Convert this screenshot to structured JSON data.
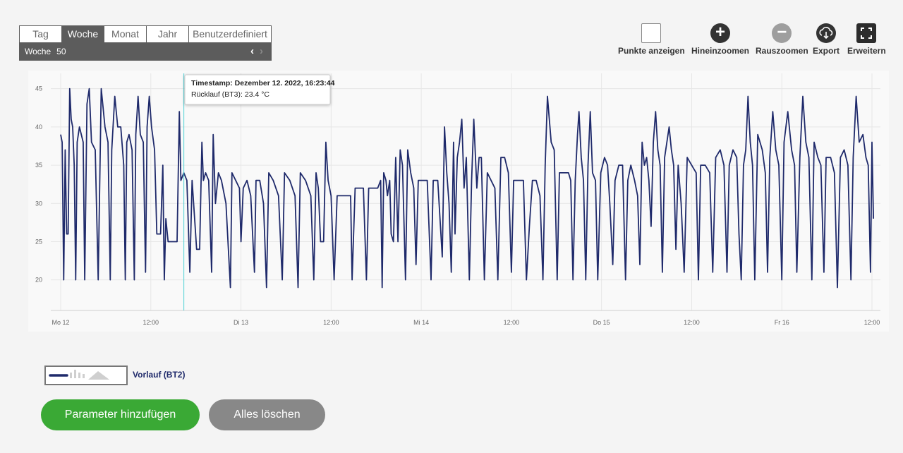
{
  "range_selector": {
    "tabs": [
      "Tag",
      "Woche",
      "Monat",
      "Jahr",
      "Benutzerdefiniert"
    ],
    "active_tab": "Woche",
    "period_label": "Woche",
    "period_value": "50"
  },
  "toolbar": {
    "show_points": "Punkte anzeigen",
    "zoom_in": "Hineinzoomen",
    "zoom_out": "Rauszoomen",
    "export": "Export",
    "expand": "Erweitern"
  },
  "tooltip": {
    "line1": "Timestamp: Dezember 12. 2022, 16:23:44",
    "line2": "Rücklauf (BT3): 23.4 °C"
  },
  "legend": {
    "label": "Vorlauf (BT2)"
  },
  "buttons": {
    "add": "Parameter hinzufügen",
    "clear": "Alles löschen"
  },
  "colors": {
    "series": "#1f2a6b",
    "cursor": "#4dd0d6",
    "add_button": "#3aa935",
    "clear_button": "#888888"
  },
  "chart_data": {
    "type": "line",
    "title": "",
    "xlabel": "",
    "ylabel": "",
    "y_ticks": [
      20,
      25,
      30,
      35,
      40,
      45
    ],
    "ylim": [
      16,
      47
    ],
    "x_ticks": [
      "Mo 12",
      "12:00",
      "Di 13",
      "12:00",
      "Mi 14",
      "12:00",
      "Do 15",
      "12:00",
      "Fr 16",
      "12:00"
    ],
    "x_range_hours": [
      0,
      108
    ],
    "cursor_hour": 16.4,
    "series": [
      {
        "name": "Vorlauf (BT2)",
        "points": [
          [
            0.0,
            39
          ],
          [
            0.2,
            38
          ],
          [
            0.4,
            20
          ],
          [
            0.6,
            37
          ],
          [
            0.8,
            26
          ],
          [
            1.0,
            26
          ],
          [
            1.2,
            45
          ],
          [
            1.4,
            41
          ],
          [
            1.6,
            40
          ],
          [
            1.8,
            35
          ],
          [
            2.0,
            20
          ],
          [
            2.2,
            38
          ],
          [
            2.5,
            40
          ],
          [
            3.0,
            38
          ],
          [
            3.2,
            20
          ],
          [
            3.5,
            43
          ],
          [
            3.8,
            45
          ],
          [
            4.1,
            38
          ],
          [
            4.6,
            37
          ],
          [
            5.0,
            20
          ],
          [
            5.4,
            45
          ],
          [
            5.9,
            40
          ],
          [
            6.3,
            38
          ],
          [
            6.6,
            20
          ],
          [
            6.8,
            37
          ],
          [
            7.2,
            44
          ],
          [
            7.6,
            40
          ],
          [
            8.0,
            40
          ],
          [
            8.4,
            35
          ],
          [
            8.6,
            20
          ],
          [
            8.8,
            38
          ],
          [
            9.1,
            39
          ],
          [
            9.5,
            37
          ],
          [
            9.8,
            20
          ],
          [
            10.0,
            39
          ],
          [
            10.3,
            44
          ],
          [
            10.6,
            39
          ],
          [
            11.0,
            38
          ],
          [
            11.3,
            21
          ],
          [
            11.5,
            40
          ],
          [
            11.8,
            44
          ],
          [
            12.1,
            40
          ],
          [
            12.5,
            37
          ],
          [
            12.8,
            26
          ],
          [
            13.3,
            26
          ],
          [
            13.6,
            35
          ],
          [
            13.8,
            20
          ],
          [
            14.0,
            28
          ],
          [
            14.3,
            25
          ],
          [
            15.0,
            25
          ],
          [
            15.5,
            25
          ],
          [
            15.8,
            42
          ],
          [
            16.0,
            33
          ],
          [
            16.4,
            34
          ],
          [
            16.8,
            33
          ],
          [
            17.2,
            21
          ],
          [
            17.5,
            33
          ],
          [
            17.9,
            27
          ],
          [
            18.1,
            24
          ],
          [
            18.5,
            24
          ],
          [
            18.8,
            38
          ],
          [
            19.0,
            33
          ],
          [
            19.3,
            34
          ],
          [
            19.7,
            33
          ],
          [
            20.1,
            21
          ],
          [
            20.3,
            39
          ],
          [
            20.6,
            30
          ],
          [
            21.0,
            34
          ],
          [
            21.4,
            33
          ],
          [
            22.0,
            30
          ],
          [
            22.6,
            19
          ],
          [
            22.8,
            34
          ],
          [
            23.3,
            33
          ],
          [
            23.8,
            32
          ],
          [
            24.0,
            25
          ],
          [
            24.3,
            32
          ],
          [
            24.8,
            33
          ],
          [
            25.3,
            31
          ],
          [
            25.8,
            21
          ],
          [
            26.0,
            33
          ],
          [
            26.5,
            33
          ],
          [
            27.0,
            30
          ],
          [
            27.4,
            19
          ],
          [
            27.7,
            34
          ],
          [
            28.3,
            33
          ],
          [
            29.0,
            31
          ],
          [
            29.5,
            20
          ],
          [
            29.8,
            34
          ],
          [
            30.5,
            33
          ],
          [
            31.2,
            31
          ],
          [
            31.6,
            19
          ],
          [
            31.9,
            34
          ],
          [
            32.6,
            33
          ],
          [
            33.3,
            31
          ],
          [
            33.7,
            20
          ],
          [
            34.0,
            34
          ],
          [
            34.3,
            32
          ],
          [
            34.6,
            25
          ],
          [
            35.0,
            25
          ],
          [
            35.3,
            38
          ],
          [
            35.6,
            33
          ],
          [
            36.0,
            31
          ],
          [
            36.4,
            20
          ],
          [
            36.8,
            31
          ],
          [
            37.5,
            31
          ],
          [
            38.0,
            31
          ],
          [
            38.6,
            31
          ],
          [
            38.8,
            20
          ],
          [
            39.2,
            32
          ],
          [
            39.8,
            32
          ],
          [
            40.3,
            32
          ],
          [
            40.7,
            20
          ],
          [
            41.0,
            32
          ],
          [
            41.6,
            32
          ],
          [
            42.2,
            32
          ],
          [
            42.6,
            33
          ],
          [
            42.8,
            19
          ],
          [
            43.0,
            34
          ],
          [
            43.3,
            33
          ],
          [
            43.5,
            31
          ],
          [
            43.8,
            33
          ],
          [
            44.0,
            26
          ],
          [
            44.3,
            25
          ],
          [
            44.6,
            36
          ],
          [
            44.9,
            25
          ],
          [
            45.2,
            37
          ],
          [
            45.5,
            35
          ],
          [
            45.9,
            20
          ],
          [
            46.2,
            37
          ],
          [
            46.6,
            34
          ],
          [
            47.0,
            32
          ],
          [
            47.3,
            22
          ],
          [
            47.6,
            33
          ],
          [
            48.1,
            33
          ],
          [
            48.8,
            33
          ],
          [
            49.3,
            20
          ],
          [
            49.6,
            33
          ],
          [
            50.2,
            33
          ],
          [
            50.8,
            23
          ],
          [
            51.1,
            40
          ],
          [
            51.4,
            34
          ],
          [
            51.7,
            30
          ],
          [
            52.0,
            21
          ],
          [
            52.3,
            38
          ],
          [
            52.5,
            26
          ],
          [
            52.8,
            36
          ],
          [
            53.1,
            38
          ],
          [
            53.4,
            41
          ],
          [
            53.7,
            32
          ],
          [
            54.0,
            36
          ],
          [
            54.4,
            20
          ],
          [
            54.7,
            33
          ],
          [
            55.0,
            41
          ],
          [
            55.4,
            32
          ],
          [
            55.7,
            36
          ],
          [
            56.0,
            36
          ],
          [
            56.4,
            20
          ],
          [
            56.8,
            34
          ],
          [
            57.3,
            33
          ],
          [
            57.8,
            32
          ],
          [
            58.2,
            20
          ],
          [
            58.6,
            36
          ],
          [
            59.1,
            36
          ],
          [
            59.6,
            34
          ],
          [
            60.0,
            21
          ],
          [
            60.3,
            33
          ],
          [
            60.9,
            33
          ],
          [
            61.6,
            33
          ],
          [
            62.0,
            20
          ],
          [
            62.4,
            27
          ],
          [
            62.8,
            33
          ],
          [
            63.3,
            33
          ],
          [
            63.8,
            31
          ],
          [
            64.2,
            20
          ],
          [
            64.5,
            35
          ],
          [
            64.8,
            44
          ],
          [
            65.3,
            38
          ],
          [
            65.7,
            37
          ],
          [
            66.1,
            20
          ],
          [
            66.4,
            34
          ],
          [
            67.0,
            34
          ],
          [
            67.6,
            34
          ],
          [
            67.9,
            33
          ],
          [
            68.2,
            20
          ],
          [
            68.5,
            33
          ],
          [
            68.8,
            39
          ],
          [
            69.0,
            42
          ],
          [
            69.3,
            36
          ],
          [
            69.6,
            33
          ],
          [
            69.9,
            20
          ],
          [
            70.2,
            35
          ],
          [
            70.5,
            42
          ],
          [
            70.8,
            34
          ],
          [
            71.2,
            33
          ],
          [
            71.5,
            20
          ],
          [
            71.9,
            34
          ],
          [
            72.4,
            36
          ],
          [
            72.8,
            35
          ],
          [
            73.1,
            30
          ],
          [
            73.5,
            22
          ],
          [
            73.8,
            33
          ],
          [
            74.3,
            35
          ],
          [
            74.8,
            35
          ],
          [
            75.2,
            20
          ],
          [
            75.5,
            33
          ],
          [
            75.9,
            35
          ],
          [
            76.4,
            33
          ],
          [
            76.8,
            31
          ],
          [
            77.1,
            22
          ],
          [
            77.4,
            38
          ],
          [
            77.7,
            35
          ],
          [
            78.0,
            36
          ],
          [
            78.3,
            33
          ],
          [
            78.6,
            27
          ],
          [
            78.9,
            38
          ],
          [
            79.2,
            42
          ],
          [
            79.5,
            37
          ],
          [
            79.8,
            35
          ],
          [
            80.1,
            21
          ],
          [
            80.4,
            36
          ],
          [
            80.7,
            38
          ],
          [
            81.0,
            40
          ],
          [
            81.3,
            37
          ],
          [
            81.6,
            35
          ],
          [
            81.9,
            24
          ],
          [
            82.2,
            35
          ],
          [
            82.6,
            30
          ],
          [
            83.0,
            21
          ],
          [
            83.4,
            36
          ],
          [
            84.0,
            35
          ],
          [
            84.6,
            34
          ],
          [
            84.9,
            20
          ],
          [
            85.2,
            35
          ],
          [
            85.8,
            35
          ],
          [
            86.4,
            34
          ],
          [
            86.8,
            21
          ],
          [
            87.2,
            36
          ],
          [
            87.8,
            37
          ],
          [
            88.3,
            35
          ],
          [
            88.7,
            21
          ],
          [
            89.0,
            35
          ],
          [
            89.5,
            37
          ],
          [
            90.0,
            36
          ],
          [
            90.3,
            26
          ],
          [
            90.6,
            20
          ],
          [
            90.9,
            35
          ],
          [
            91.2,
            37
          ],
          [
            91.5,
            44
          ],
          [
            91.8,
            38
          ],
          [
            92.1,
            35
          ],
          [
            92.4,
            20
          ],
          [
            92.8,
            39
          ],
          [
            93.4,
            37
          ],
          [
            93.8,
            34
          ],
          [
            94.1,
            21
          ],
          [
            94.4,
            36
          ],
          [
            94.8,
            42
          ],
          [
            95.2,
            37
          ],
          [
            95.6,
            35
          ],
          [
            96.0,
            20
          ],
          [
            96.3,
            38
          ],
          [
            96.8,
            42
          ],
          [
            97.3,
            37
          ],
          [
            97.7,
            35
          ],
          [
            98.0,
            21
          ],
          [
            98.4,
            36
          ],
          [
            98.8,
            44
          ],
          [
            99.2,
            38
          ],
          [
            99.6,
            36
          ],
          [
            100.0,
            20
          ],
          [
            100.3,
            38
          ],
          [
            100.8,
            36
          ],
          [
            101.2,
            35
          ],
          [
            101.6,
            21
          ],
          [
            101.9,
            36
          ],
          [
            102.5,
            36
          ],
          [
            103.0,
            34
          ],
          [
            103.4,
            19
          ],
          [
            103.8,
            36
          ],
          [
            104.3,
            37
          ],
          [
            104.8,
            35
          ],
          [
            105.2,
            20
          ],
          [
            105.5,
            36
          ],
          [
            105.9,
            44
          ],
          [
            106.3,
            38
          ],
          [
            106.8,
            39
          ],
          [
            107.2,
            36
          ],
          [
            107.5,
            35
          ],
          [
            107.8,
            21
          ],
          [
            108.0,
            38
          ],
          [
            108.2,
            28
          ]
        ]
      }
    ]
  }
}
